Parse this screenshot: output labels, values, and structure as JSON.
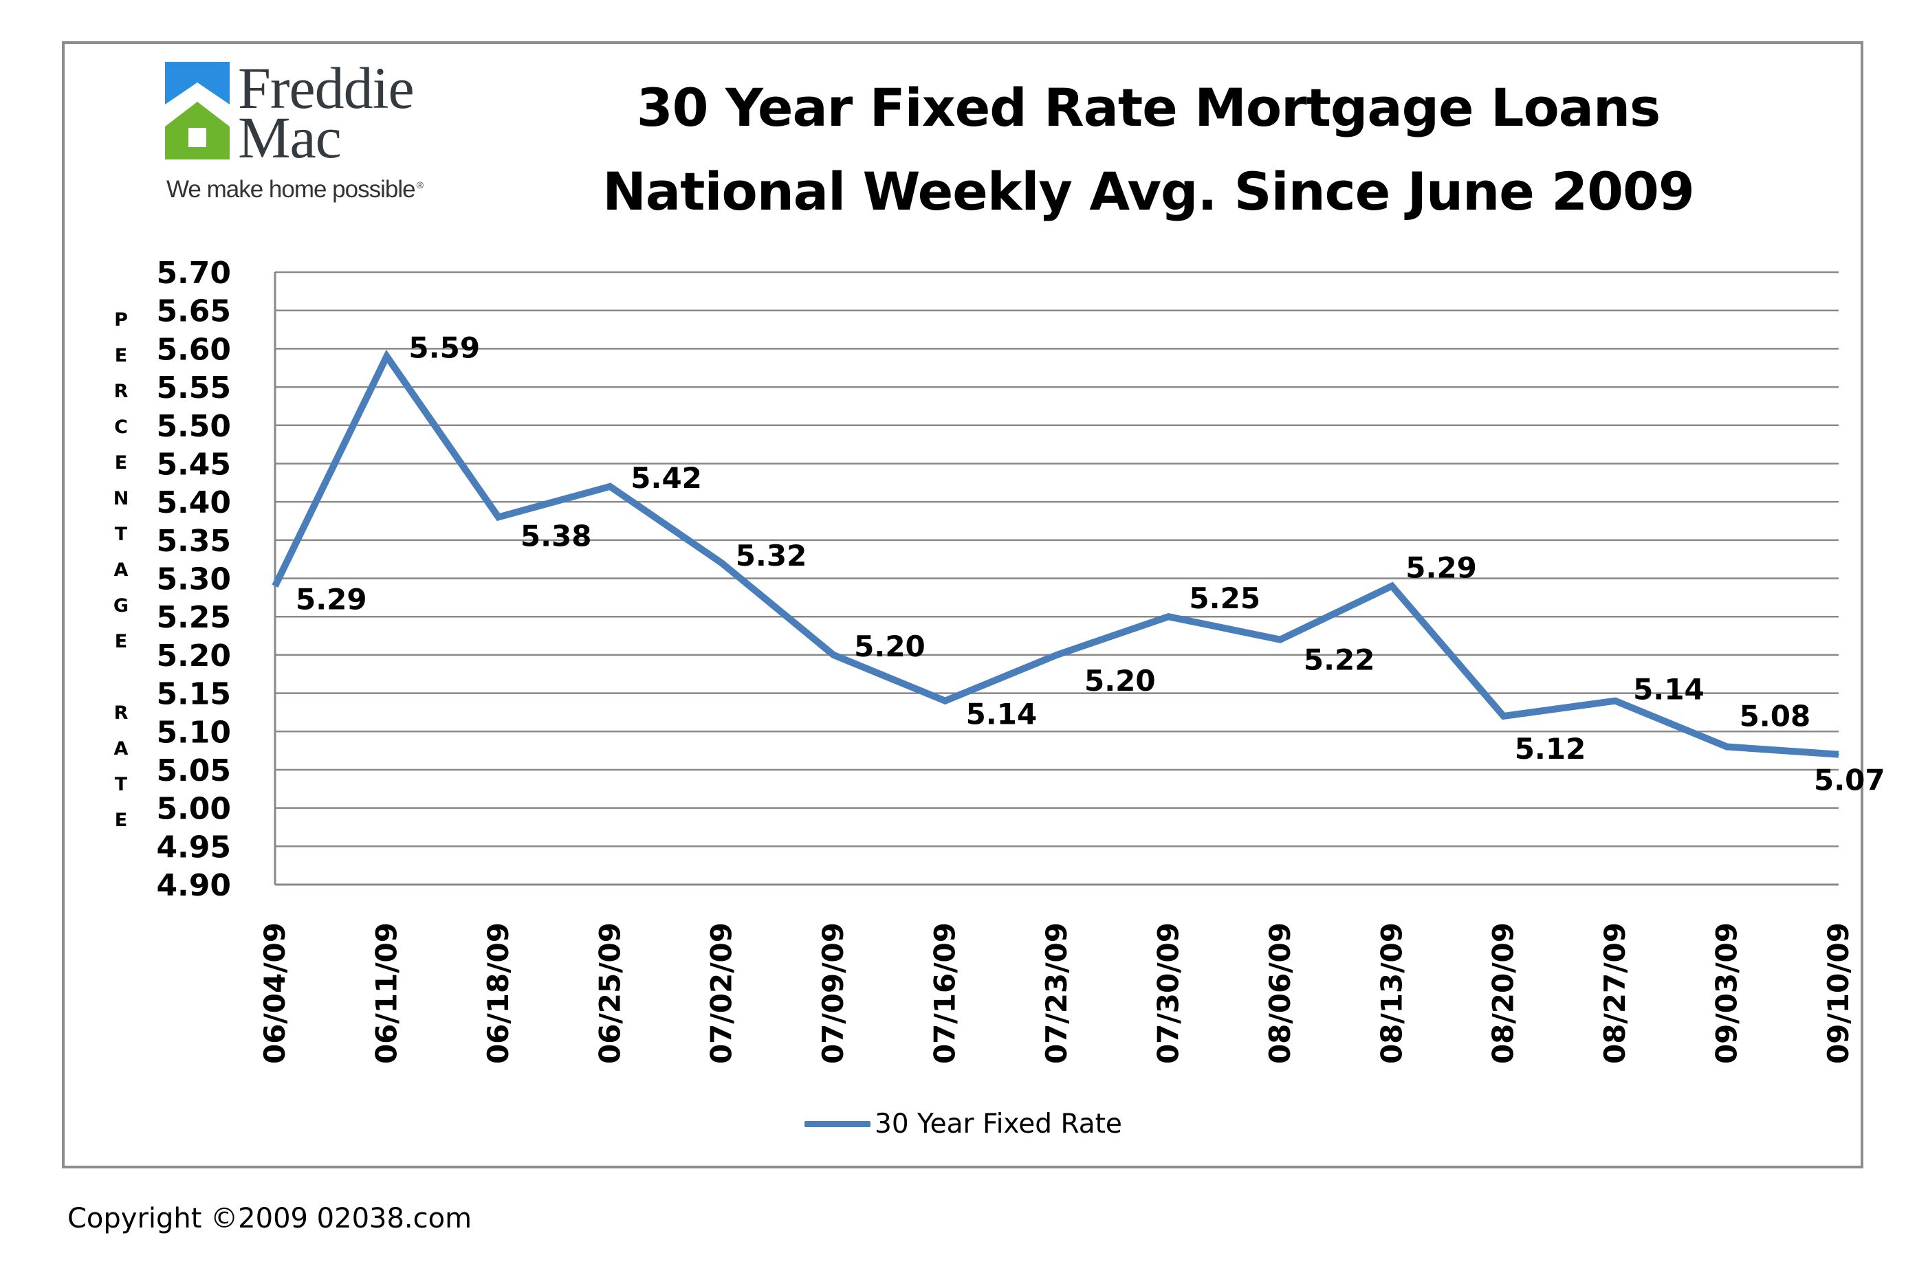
{
  "logo": {
    "name_line1": "Freddie",
    "name_line2": "Mac",
    "tagline": "We make home possible",
    "registered": "®",
    "colors": {
      "blue": "#2a8ee0",
      "green": "#6cb52d"
    }
  },
  "copyright": "Copyright ©2009 02038.com",
  "chart_data": {
    "type": "line",
    "title": [
      "30 Year Fixed Rate Mortgage Loans",
      "National Weekly Avg. Since June 2009"
    ],
    "ylabel": "PERCENTAGE RATE",
    "xlabel": "",
    "categories": [
      "06/04/09",
      "06/11/09",
      "06/18/09",
      "06/25/09",
      "07/02/09",
      "07/09/09",
      "07/16/09",
      "07/23/09",
      "07/30/09",
      "08/06/09",
      "08/13/09",
      "08/20/09",
      "08/27/09",
      "09/03/09",
      "09/10/09"
    ],
    "series": [
      {
        "name": "30 Year Fixed Rate",
        "color": "#4a7ebb",
        "values": [
          5.29,
          5.59,
          5.38,
          5.42,
          5.32,
          5.2,
          5.14,
          5.2,
          5.25,
          5.22,
          5.29,
          5.12,
          5.14,
          5.08,
          5.07
        ]
      }
    ],
    "ylim": [
      4.9,
      5.7
    ],
    "ystep": 0.05,
    "ytick_labels": [
      "4.90",
      "4.95",
      "5.00",
      "5.05",
      "5.10",
      "5.15",
      "5.20",
      "5.25",
      "5.30",
      "5.35",
      "5.40",
      "5.45",
      "5.50",
      "5.55",
      "5.60",
      "5.65",
      "5.70"
    ],
    "data_labels": [
      "5.29",
      "5.59",
      "5.38",
      "5.42",
      "5.32",
      "5.20",
      "5.14",
      "5.20",
      "5.25",
      "5.22",
      "5.29",
      "5.12",
      "5.14",
      "5.08",
      "5.07"
    ],
    "grid": true,
    "legend_position": "bottom-center"
  }
}
